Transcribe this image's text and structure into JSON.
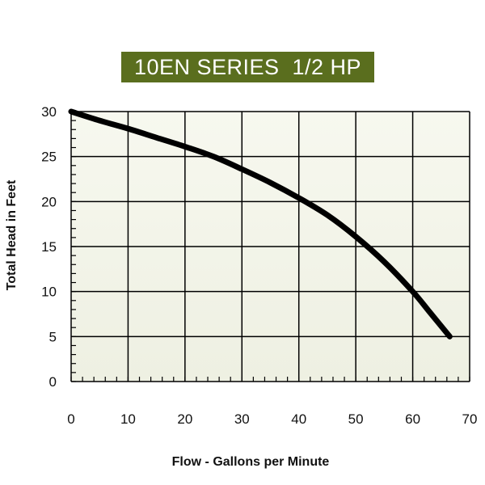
{
  "chart_data": {
    "type": "line",
    "title": "10EN SERIES  1/2 HP",
    "xlabel": "Flow - Gallons per Minute",
    "ylabel": "Total Head in Feet",
    "xlim": [
      0,
      70
    ],
    "ylim": [
      0,
      30
    ],
    "x_ticks": [
      0,
      10,
      20,
      30,
      40,
      50,
      60,
      70
    ],
    "y_ticks": [
      0,
      5,
      10,
      15,
      20,
      25,
      30
    ],
    "grid": true,
    "background_color": "#eef0e2",
    "title_bg_color": "#5a6e1e",
    "series": [
      {
        "color": "#000000",
        "x": [
          0,
          5,
          10,
          15,
          20,
          25,
          30,
          35,
          40,
          45,
          50,
          55,
          60,
          63,
          66.5
        ],
        "y": [
          30,
          29,
          28.1,
          27.1,
          26.1,
          25,
          23.6,
          22.1,
          20.4,
          18.5,
          16.1,
          13.3,
          10.0,
          7.7,
          5
        ]
      }
    ]
  }
}
